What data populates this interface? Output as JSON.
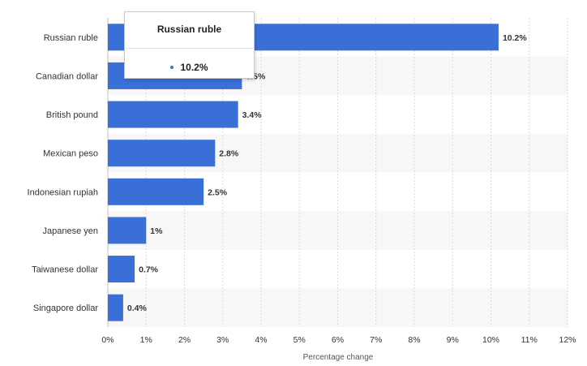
{
  "chart_data": {
    "type": "bar",
    "orientation": "horizontal",
    "categories": [
      "Russian ruble",
      "Canadian dollar",
      "British pound",
      "Mexican peso",
      "Indonesian rupiah",
      "Japanese yen",
      "Taiwanese dollar",
      "Singapore dollar"
    ],
    "values": [
      10.2,
      3.5,
      3.4,
      2.8,
      2.5,
      1,
      0.7,
      0.4
    ],
    "data_labels": [
      "10.2%",
      "3.5%",
      "3.4%",
      "2.8%",
      "2.5%",
      "1%",
      "0.7%",
      "0.4%"
    ],
    "xlabel": "Percentage change",
    "xlim": [
      0,
      12
    ],
    "xticks": [
      0,
      1,
      2,
      3,
      4,
      5,
      6,
      7,
      8,
      9,
      10,
      11,
      12
    ],
    "xtick_labels": [
      "0%",
      "1%",
      "2%",
      "3%",
      "4%",
      "5%",
      "6%",
      "7%",
      "8%",
      "9%",
      "10%",
      "11%",
      "12%"
    ],
    "grid": "vertical dashed",
    "bar_color": "#3b6fd8"
  },
  "tooltip": {
    "title": "Russian ruble",
    "value": "10.2%"
  }
}
